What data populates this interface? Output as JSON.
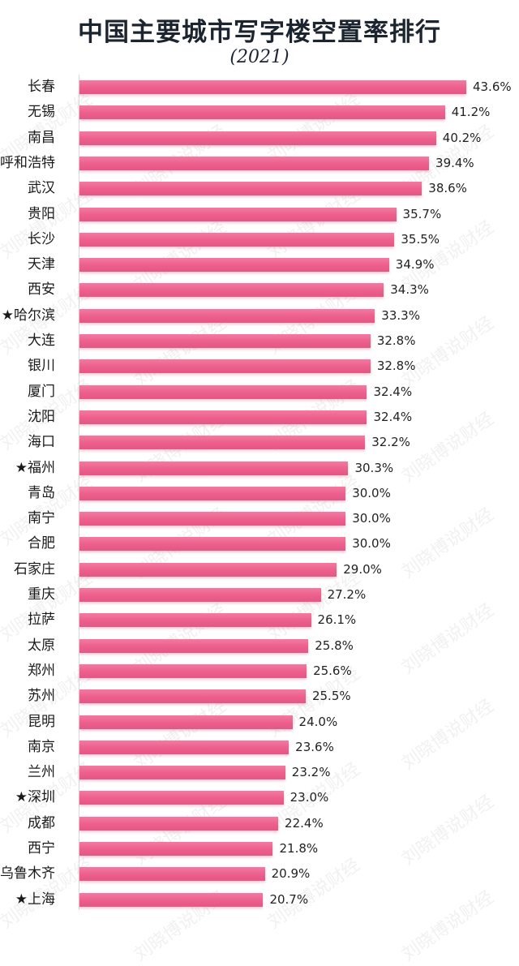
{
  "header": {
    "title": "中国主要城市写字楼空置率排行",
    "subtitle": "(2021)"
  },
  "watermark_text": "刘晓博说财经",
  "colors": {
    "bar": "#ec5f8c",
    "text": "#1a1a1a",
    "title": "#1c2430"
  },
  "chart_data": {
    "type": "bar",
    "orientation": "horizontal",
    "title": "中国主要城市写字楼空置率排行",
    "subtitle": "(2021)",
    "xlabel": "",
    "ylabel": "",
    "unit": "%",
    "grid": false,
    "legend": null,
    "xlim": [
      0,
      45
    ],
    "categories": [
      "长春",
      "无锡",
      "南昌",
      "呼和浩特",
      "武汉",
      "贵阳",
      "长沙",
      "天津",
      "西安",
      "★哈尔滨",
      "大连",
      "银川",
      "厦门",
      "沈阳",
      "海口",
      "★福州",
      "青岛",
      "南宁",
      "合肥",
      "石家庄",
      "重庆",
      "拉萨",
      "太原",
      "郑州",
      "苏州",
      "昆明",
      "南京",
      "兰州",
      "★深圳",
      "成都",
      "西宁",
      "乌鲁木齐",
      "★上海"
    ],
    "values": [
      43.6,
      41.2,
      40.2,
      39.4,
      38.6,
      35.7,
      35.5,
      34.9,
      34.3,
      33.3,
      32.8,
      32.8,
      32.4,
      32.4,
      32.2,
      30.3,
      30.0,
      30.0,
      30.0,
      29.0,
      27.2,
      26.1,
      25.8,
      25.6,
      25.5,
      24.0,
      23.6,
      23.2,
      23.0,
      22.4,
      21.8,
      20.9,
      20.7
    ],
    "value_labels": [
      "43.6%",
      "41.2%",
      "40.2%",
      "39.4%",
      "38.6%",
      "35.7%",
      "35.5%",
      "34.9%",
      "34.3%",
      "33.3%",
      "32.8%",
      "32.8%",
      "32.4%",
      "32.4%",
      "32.2%",
      "30.3%",
      "30.0%",
      "30.0%",
      "30.0%",
      "29.0%",
      "27.2%",
      "26.1%",
      "25.8%",
      "25.6%",
      "25.5%",
      "24.0%",
      "23.6%",
      "23.2%",
      "23.0%",
      "22.4%",
      "21.8%",
      "20.9%",
      "20.7%"
    ],
    "annotations": [
      "★ marks 哈尔滨, 福州, 深圳, 上海"
    ]
  }
}
